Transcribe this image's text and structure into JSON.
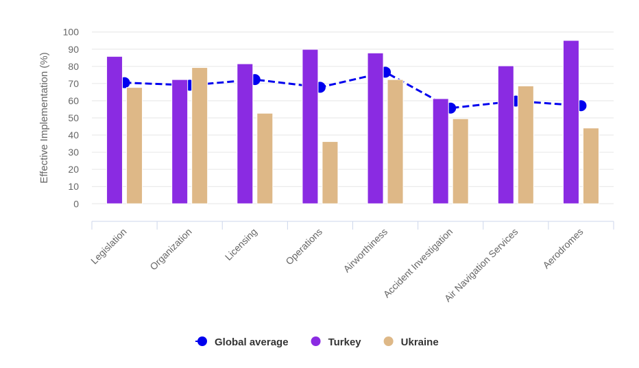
{
  "chart_data": {
    "type": "bar",
    "title": "",
    "xlabel": "",
    "ylabel": "Effective Implementation (%)",
    "ylim": [
      0,
      100
    ],
    "yticks": [
      0,
      10,
      20,
      30,
      40,
      50,
      60,
      70,
      80,
      90,
      100
    ],
    "grid": true,
    "legend_placement": "bottom",
    "categories": [
      "Legislation",
      "Organization",
      "Licensing",
      "Operations",
      "Airworthiness",
      "Accident Investigation",
      "Air Navigation Services",
      "Aerodromes"
    ],
    "series": [
      {
        "name": "Global average",
        "kind": "line",
        "style": "dashed",
        "color": "#0000ee",
        "values": [
          70.5,
          69,
          72.3,
          67.8,
          76.6,
          55.7,
          59.8,
          57.1
        ]
      },
      {
        "name": "Turkey",
        "kind": "bar",
        "color": "#8a2be2",
        "values": [
          85.8,
          72.3,
          81.5,
          89.9,
          87.8,
          61.2,
          80.3,
          95.1
        ]
      },
      {
        "name": "Ukraine",
        "kind": "bar",
        "color": "#deb887",
        "values": [
          67.7,
          79.3,
          52.7,
          36.2,
          72.3,
          49.5,
          68.6,
          44.1
        ]
      }
    ]
  }
}
